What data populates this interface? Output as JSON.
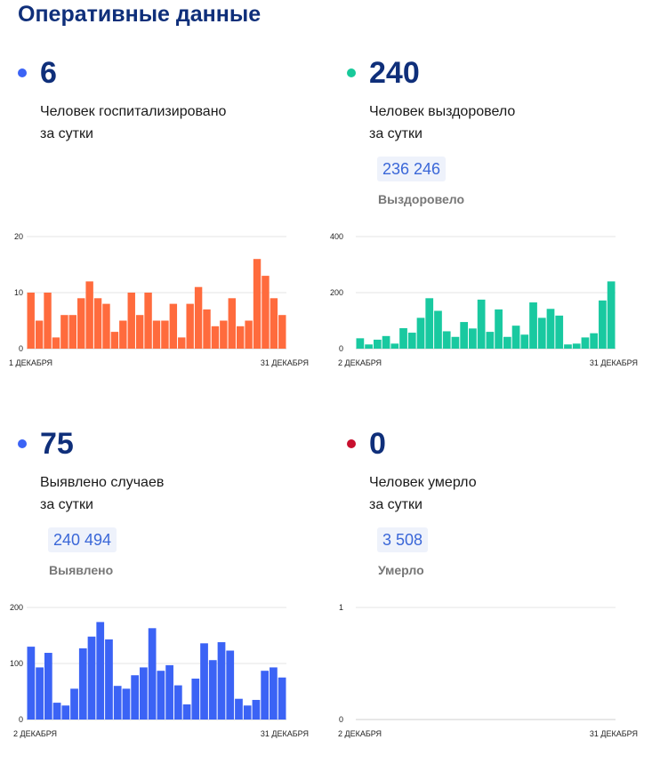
{
  "page_title": "Оперативные данные",
  "cards": [
    {
      "value": "6",
      "line1": "Человек госпитализировано",
      "line2": "за сутки",
      "dot_color": "#3b63f5",
      "total": "",
      "total_label": ""
    },
    {
      "value": "240",
      "line1": "Человек выздоровело",
      "line2": "за сутки",
      "dot_color": "#18c99a",
      "total": "236 246",
      "total_label": "Выздоровело"
    },
    {
      "value": "75",
      "line1": "Выявлено случаев",
      "line2": "за сутки",
      "dot_color": "#3b63f5",
      "total": "240 494",
      "total_label": "Выявлено"
    },
    {
      "value": "0",
      "line1": "Человек умерло",
      "line2": "за сутки",
      "dot_color": "#c8102e",
      "total": "3 508",
      "total_label": "Умерло"
    }
  ],
  "chart_data": [
    {
      "type": "bar",
      "color": "#ff6b3d",
      "ylim": [
        0,
        20
      ],
      "yticks": [
        "0",
        "10",
        "20"
      ],
      "x_start_label": "1 ДЕКАБРЯ",
      "x_end_label": "31 ДЕКАБРЯ",
      "values": [
        10,
        5,
        10,
        2,
        6,
        6,
        9,
        12,
        9,
        8,
        3,
        5,
        10,
        6,
        10,
        5,
        5,
        8,
        2,
        8,
        11,
        7,
        4,
        5,
        9,
        4,
        5,
        16,
        13,
        9,
        6
      ]
    },
    {
      "type": "bar",
      "color": "#19c9a0",
      "ylim": [
        0,
        400
      ],
      "yticks": [
        "0",
        "200",
        "400"
      ],
      "x_start_label": "2 ДЕКАБРЯ",
      "x_end_label": "31 ДЕКАБРЯ",
      "values": [
        37,
        15,
        32,
        45,
        18,
        73,
        57,
        110,
        180,
        135,
        62,
        42,
        95,
        72,
        175,
        60,
        140,
        42,
        82,
        50,
        165,
        110,
        142,
        118,
        15,
        18,
        40,
        55,
        172,
        240
      ]
    },
    {
      "type": "bar",
      "color": "#3b63f5",
      "ylim": [
        0,
        200
      ],
      "yticks": [
        "0",
        "100",
        "200"
      ],
      "x_start_label": "2 ДЕКАБРЯ",
      "x_end_label": "31 ДЕКАБРЯ",
      "values": [
        130,
        93,
        119,
        30,
        25,
        55,
        127,
        148,
        174,
        143,
        60,
        55,
        79,
        93,
        163,
        87,
        97,
        61,
        27,
        73,
        136,
        106,
        138,
        123,
        37,
        25,
        35,
        87,
        93,
        75
      ]
    },
    {
      "type": "bar",
      "color": "#c8102e",
      "ylim": [
        0,
        1
      ],
      "yticks": [
        "0",
        "1"
      ],
      "x_start_label": "2 ДЕКАБРЯ",
      "x_end_label": "31 ДЕКАБРЯ",
      "values": [
        0,
        0,
        0,
        0,
        0,
        0,
        0,
        0,
        0,
        0,
        0,
        0,
        0,
        0,
        0,
        0,
        0,
        0,
        0,
        0,
        0,
        0,
        0,
        0,
        0,
        0,
        0,
        0,
        0,
        0
      ]
    }
  ]
}
